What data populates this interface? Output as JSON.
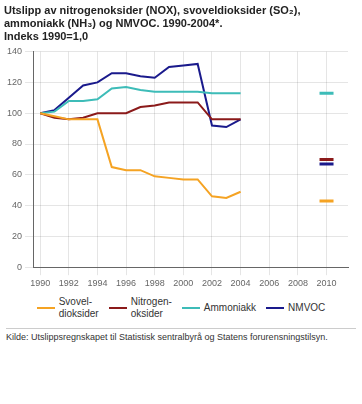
{
  "chart_data": {
    "type": "line",
    "title": "Utslipp av nitrogenoksider (NOX), svoveldioksider (SO₂),\nammoniakk (NH₃) og NMVOC. 1990-2004*.\nIndeks 1990=1,0",
    "source": "Kilde: Utslippsregnskapet til Statistisk sentralbyrå og Statens forurensningstilsyn.",
    "x": [
      1990,
      1991,
      1992,
      1993,
      1994,
      1995,
      1996,
      1997,
      1998,
      1999,
      2000,
      2001,
      2002,
      2003,
      2004
    ],
    "series": [
      {
        "name": "Svovel-\ndioksider",
        "color": "#f5a323",
        "values": [
          100,
          98,
          96,
          96,
          96,
          65,
          63,
          63,
          59,
          58,
          57,
          57,
          46,
          45,
          49
        ],
        "target": {
          "x": 2010,
          "value": 43
        }
      },
      {
        "name": "Nitrogen-\noksider",
        "color": "#8b1a1a",
        "values": [
          100,
          97,
          96,
          97,
          100,
          100,
          100,
          104,
          105,
          107,
          107,
          107,
          96,
          96,
          96
        ],
        "target": {
          "x": 2010,
          "value": 70
        }
      },
      {
        "name": "Ammoniakk",
        "color": "#3dbcb8",
        "values": [
          100,
          101,
          108,
          108,
          109,
          116,
          117,
          115,
          114,
          114,
          114,
          114,
          113,
          113,
          113
        ],
        "target": {
          "x": 2010,
          "value": 113
        }
      },
      {
        "name": "NMVOC",
        "color": "#1a1a8c",
        "values": [
          100,
          102,
          110,
          118,
          120,
          126,
          126,
          124,
          123,
          130,
          131,
          132,
          92,
          91,
          96
        ],
        "target": {
          "x": 2010,
          "value": 67
        }
      }
    ],
    "xlim": [
      1989.5,
      2011.5
    ],
    "xticks": [
      1990,
      1992,
      1994,
      1996,
      1998,
      2000,
      2002,
      2004,
      2006,
      2008,
      2010
    ],
    "ylim": [
      0,
      140
    ],
    "yticks": [
      0,
      20,
      40,
      60,
      80,
      100,
      120,
      140
    ],
    "grid": true
  }
}
